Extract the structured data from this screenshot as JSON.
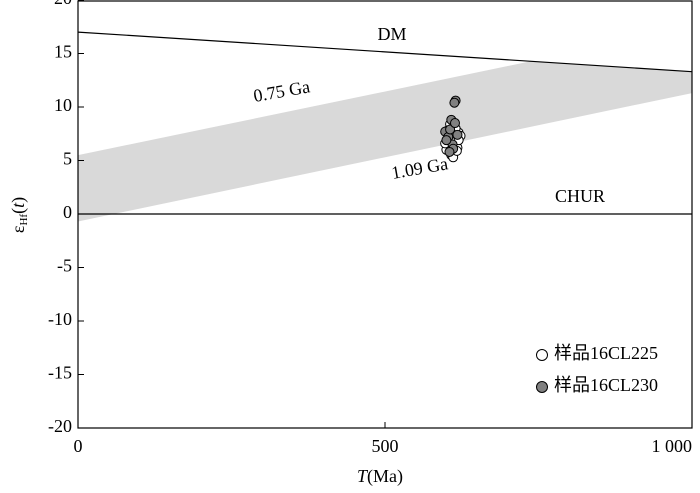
{
  "chart_data": {
    "type": "scatter",
    "x_label_parts": [
      "T",
      "(Ma)"
    ],
    "y_label_parts": [
      "ε",
      "Hf",
      "(",
      "t",
      ")"
    ],
    "xlim": [
      0,
      1000
    ],
    "xticks": [
      0,
      500,
      {
        "value": 1000,
        "label": "1 000"
      }
    ],
    "ylim": [
      -20,
      20
    ],
    "yticks": [
      20,
      15,
      10,
      5,
      0,
      -5,
      -10,
      -15,
      -20
    ],
    "reference_lines": [
      {
        "name": "DM",
        "x": [
          0,
          1000
        ],
        "y": [
          17,
          13.3
        ]
      },
      {
        "name": "CHUR",
        "x": [
          0,
          1000
        ],
        "y": [
          0,
          0
        ]
      }
    ],
    "band": {
      "color": "#d9d9d9",
      "x": [
        0,
        1000
      ],
      "upper": [
        5.5,
        17.4
      ],
      "lower": [
        -0.7,
        11.3
      ],
      "upper_label": "0.75 Ga",
      "lower_label": "1.09 Ga"
    },
    "legend": "lower right",
    "series": [
      {
        "name": "样品16CL225",
        "color": "#ffffff",
        "x": [
          600,
          605,
          610,
          615,
          620,
          603,
          612,
          618,
          623,
          608,
          598,
          615,
          606,
          620,
          611,
          602,
          617,
          609
        ],
        "y": [
          6.0,
          6.5,
          5.8,
          7.2,
          7.6,
          7.0,
          6.8,
          6.2,
          7.3,
          5.5,
          6.6,
          8.0,
          8.4,
          6.9,
          5.3,
          7.8,
          5.9,
          7.5
        ]
      },
      {
        "name": "样品16CL230",
        "color": "#808080",
        "x": [
          598,
          603,
          610,
          615,
          608,
          613,
          600,
          606,
          618,
          611,
          605,
          614
        ],
        "y": [
          7.7,
          7.2,
          6.5,
          10.6,
          8.8,
          10.4,
          6.9,
          7.9,
          7.4,
          6.1,
          5.8,
          8.5
        ]
      }
    ]
  }
}
